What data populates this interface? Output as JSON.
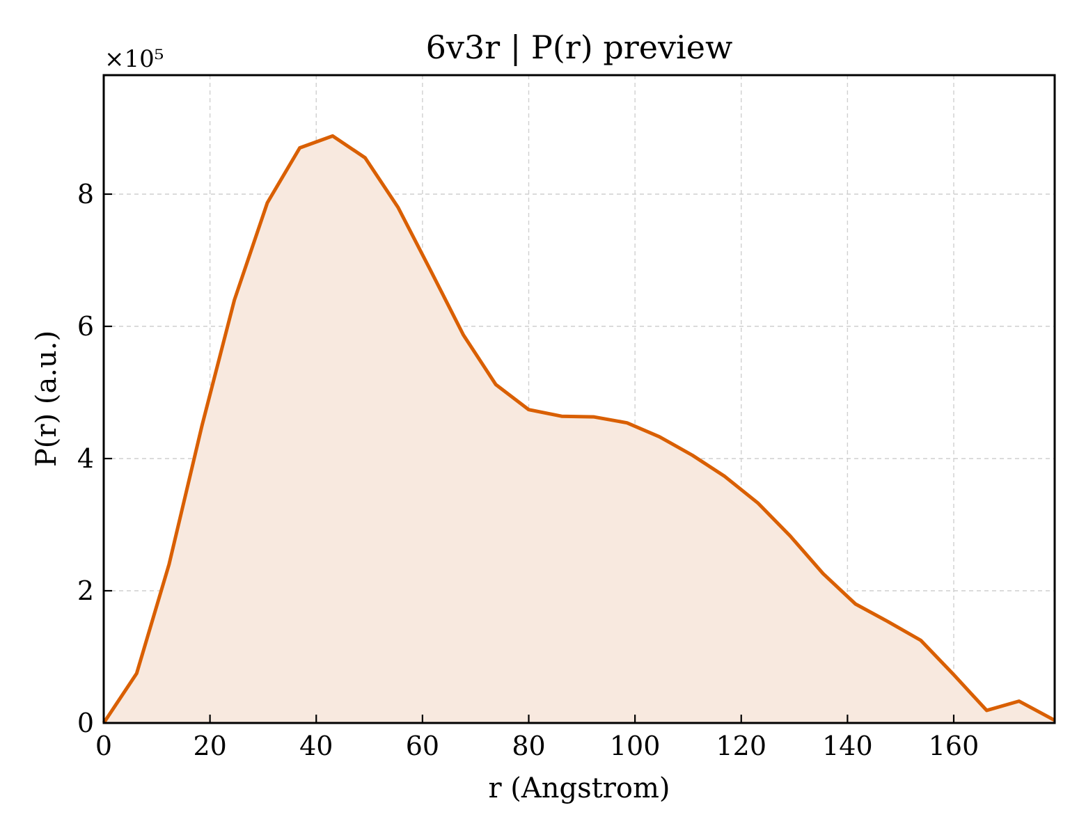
{
  "chart_data": {
    "type": "area",
    "title": "6v3r | P(r) preview",
    "xlabel": "r (Angstrom)",
    "ylabel": "P(r) (a.u.)",
    "y_multiplier_label": "×10⁵",
    "y_multiplier": 100000,
    "xlim": [
      0,
      179
    ],
    "ylim": [
      0,
      980000
    ],
    "xticks": [
      0,
      20,
      40,
      60,
      80,
      100,
      120,
      140,
      160
    ],
    "yticks": [
      0,
      2,
      4,
      6,
      8
    ],
    "grid": true,
    "line_color": "#d95f02",
    "fill_color": "#f8e9df",
    "series": [
      {
        "x": [
          0,
          6.2,
          12.3,
          18.5,
          24.6,
          30.8,
          36.9,
          43.1,
          49.2,
          55.4,
          61.5,
          67.7,
          73.8,
          80.0,
          86.2,
          92.3,
          98.5,
          104.6,
          110.8,
          116.9,
          123.1,
          129.2,
          135.4,
          141.5,
          147.7,
          153.8,
          160.0,
          166.2,
          172.3,
          179.0
        ],
        "y": [
          0,
          75000,
          240000,
          450000,
          640000,
          787000,
          870000,
          888000,
          855000,
          780000,
          685000,
          587000,
          512000,
          474000,
          464000,
          463000,
          454000,
          433000,
          405000,
          373000,
          333000,
          283000,
          226000,
          180000,
          153000,
          125000,
          73000,
          19000,
          33000,
          4000
        ]
      }
    ]
  }
}
